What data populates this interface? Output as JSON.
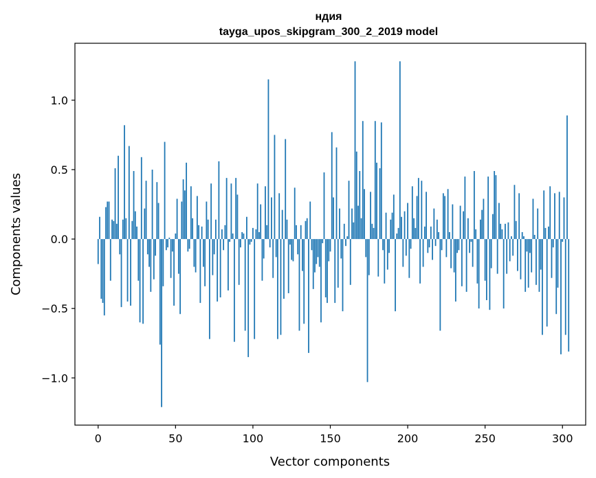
{
  "chart_data": {
    "type": "bar",
    "title": "ндия",
    "subtitle": "tayga_upos_skipgram_300_2_2019 model",
    "xlabel": "Vector components",
    "ylabel": "Components values",
    "xlim": [
      -15,
      315
    ],
    "ylim": [
      -1.34,
      1.41
    ],
    "xticks": [
      0,
      50,
      100,
      150,
      200,
      250,
      300
    ],
    "xtick_labels": [
      "0",
      "50",
      "100",
      "150",
      "200",
      "250",
      "300"
    ],
    "yticks": [
      -1.0,
      -0.5,
      0.0,
      0.5,
      1.0
    ],
    "ytick_labels": [
      "−1.0",
      "−0.5",
      "0.0",
      "0.5",
      "1.0"
    ],
    "bar_color": "#1f77b4",
    "values": [
      -0.18,
      0.16,
      -0.43,
      -0.46,
      -0.55,
      0.23,
      0.27,
      0.27,
      -0.3,
      0.14,
      0.13,
      0.51,
      0.11,
      0.6,
      -0.11,
      -0.49,
      0.14,
      0.82,
      0.15,
      -0.45,
      0.67,
      -0.48,
      0.13,
      0.49,
      0.2,
      0.09,
      -0.3,
      -0.6,
      0.59,
      -0.61,
      0.22,
      0.42,
      -0.11,
      -0.2,
      -0.38,
      0.5,
      -0.29,
      -0.12,
      0.41,
      0.26,
      -0.76,
      -1.21,
      -0.34,
      0.7,
      -0.08,
      -0.06,
      0.01,
      -0.28,
      -0.09,
      -0.48,
      0.04,
      0.29,
      -0.25,
      -0.54,
      0.27,
      0.43,
      0.35,
      0.55,
      -0.09,
      -0.07,
      0.38,
      0.15,
      -0.2,
      -0.24,
      0.31,
      0.1,
      -0.46,
      0.09,
      -0.2,
      -0.34,
      0.27,
      0.14,
      -0.72,
      0.4,
      -0.26,
      -0.11,
      0.14,
      -0.45,
      0.56,
      -0.42,
      0.07,
      -0.08,
      0.1,
      0.44,
      -0.37,
      -0.02,
      0.4,
      0.04,
      -0.74,
      0.44,
      0.32,
      -0.33,
      -0.06,
      0.05,
      0.04,
      -0.66,
      0.16,
      -0.85,
      -0.04,
      -0.02,
      0.08,
      -0.72,
      0.07,
      0.4,
      0.05,
      0.25,
      -0.3,
      -0.14,
      0.38,
      0.1,
      1.15,
      -0.06,
      0.3,
      -0.28,
      0.75,
      -0.13,
      -0.72,
      0.33,
      -0.69,
      0.21,
      -0.43,
      0.72,
      0.14,
      -0.39,
      -0.04,
      -0.15,
      -0.16,
      0.37,
      0.1,
      -0.11,
      -0.66,
      0.1,
      -0.23,
      -0.61,
      0.13,
      0.15,
      -0.82,
      0.27,
      -0.08,
      -0.36,
      -0.24,
      -0.18,
      -0.13,
      -0.2,
      -0.6,
      -0.03,
      0.48,
      -0.42,
      -0.46,
      -0.16,
      -0.09,
      0.77,
      0.3,
      -0.46,
      0.66,
      -0.35,
      0.22,
      -0.14,
      -0.52,
      0.11,
      -0.05,
      0.02,
      0.42,
      -0.33,
      0.22,
      0.12,
      1.28,
      0.63,
      0.24,
      0.49,
      0.15,
      0.85,
      0.36,
      -0.13,
      -1.03,
      -0.26,
      0.34,
      0.11,
      0.08,
      0.85,
      0.55,
      -0.27,
      0.51,
      0.84,
      -0.08,
      -0.32,
      0.19,
      -0.22,
      -0.1,
      0.14,
      0.19,
      0.32,
      -0.52,
      0.04,
      0.08,
      1.28,
      0.16,
      -0.2,
      0.2,
      -0.12,
      0.26,
      -0.28,
      -0.07,
      0.38,
      0.15,
      0.08,
      0.31,
      0.44,
      -0.32,
      0.42,
      -0.2,
      0.09,
      0.34,
      -0.1,
      -0.06,
      0.09,
      -0.15,
      0.22,
      -0.05,
      0.14,
      0.05,
      -0.66,
      -0.08,
      0.33,
      0.31,
      -0.13,
      0.36,
      0.05,
      -0.21,
      0.25,
      -0.24,
      -0.45,
      -0.1,
      -0.08,
      0.24,
      -0.34,
      0.2,
      0.45,
      -0.38,
      0.15,
      -0.1,
      -0.02,
      -0.2,
      0.49,
      0.07,
      -0.32,
      -0.5,
      0.14,
      0.21,
      0.29,
      -0.3,
      -0.44,
      0.45,
      -0.51,
      -0.21,
      0.18,
      0.49,
      0.46,
      -0.25,
      0.26,
      0.11,
      0.07,
      -0.5,
      0.11,
      -0.25,
      0.12,
      -0.16,
      0.02,
      -0.12,
      0.39,
      0.13,
      -0.23,
      0.33,
      -0.29,
      0.05,
      0.02,
      -0.38,
      -0.09,
      -0.35,
      -0.1,
      -0.24,
      0.29,
      0.03,
      -0.33,
      0.22,
      -0.38,
      -0.22,
      -0.69,
      0.35,
      0.08,
      -0.63,
      0.09,
      0.38,
      -0.28,
      -0.06,
      0.33,
      -0.54,
      -0.35,
      0.34,
      -0.83,
      -0.02,
      0.3,
      -0.69,
      0.89,
      -0.81
    ]
  }
}
